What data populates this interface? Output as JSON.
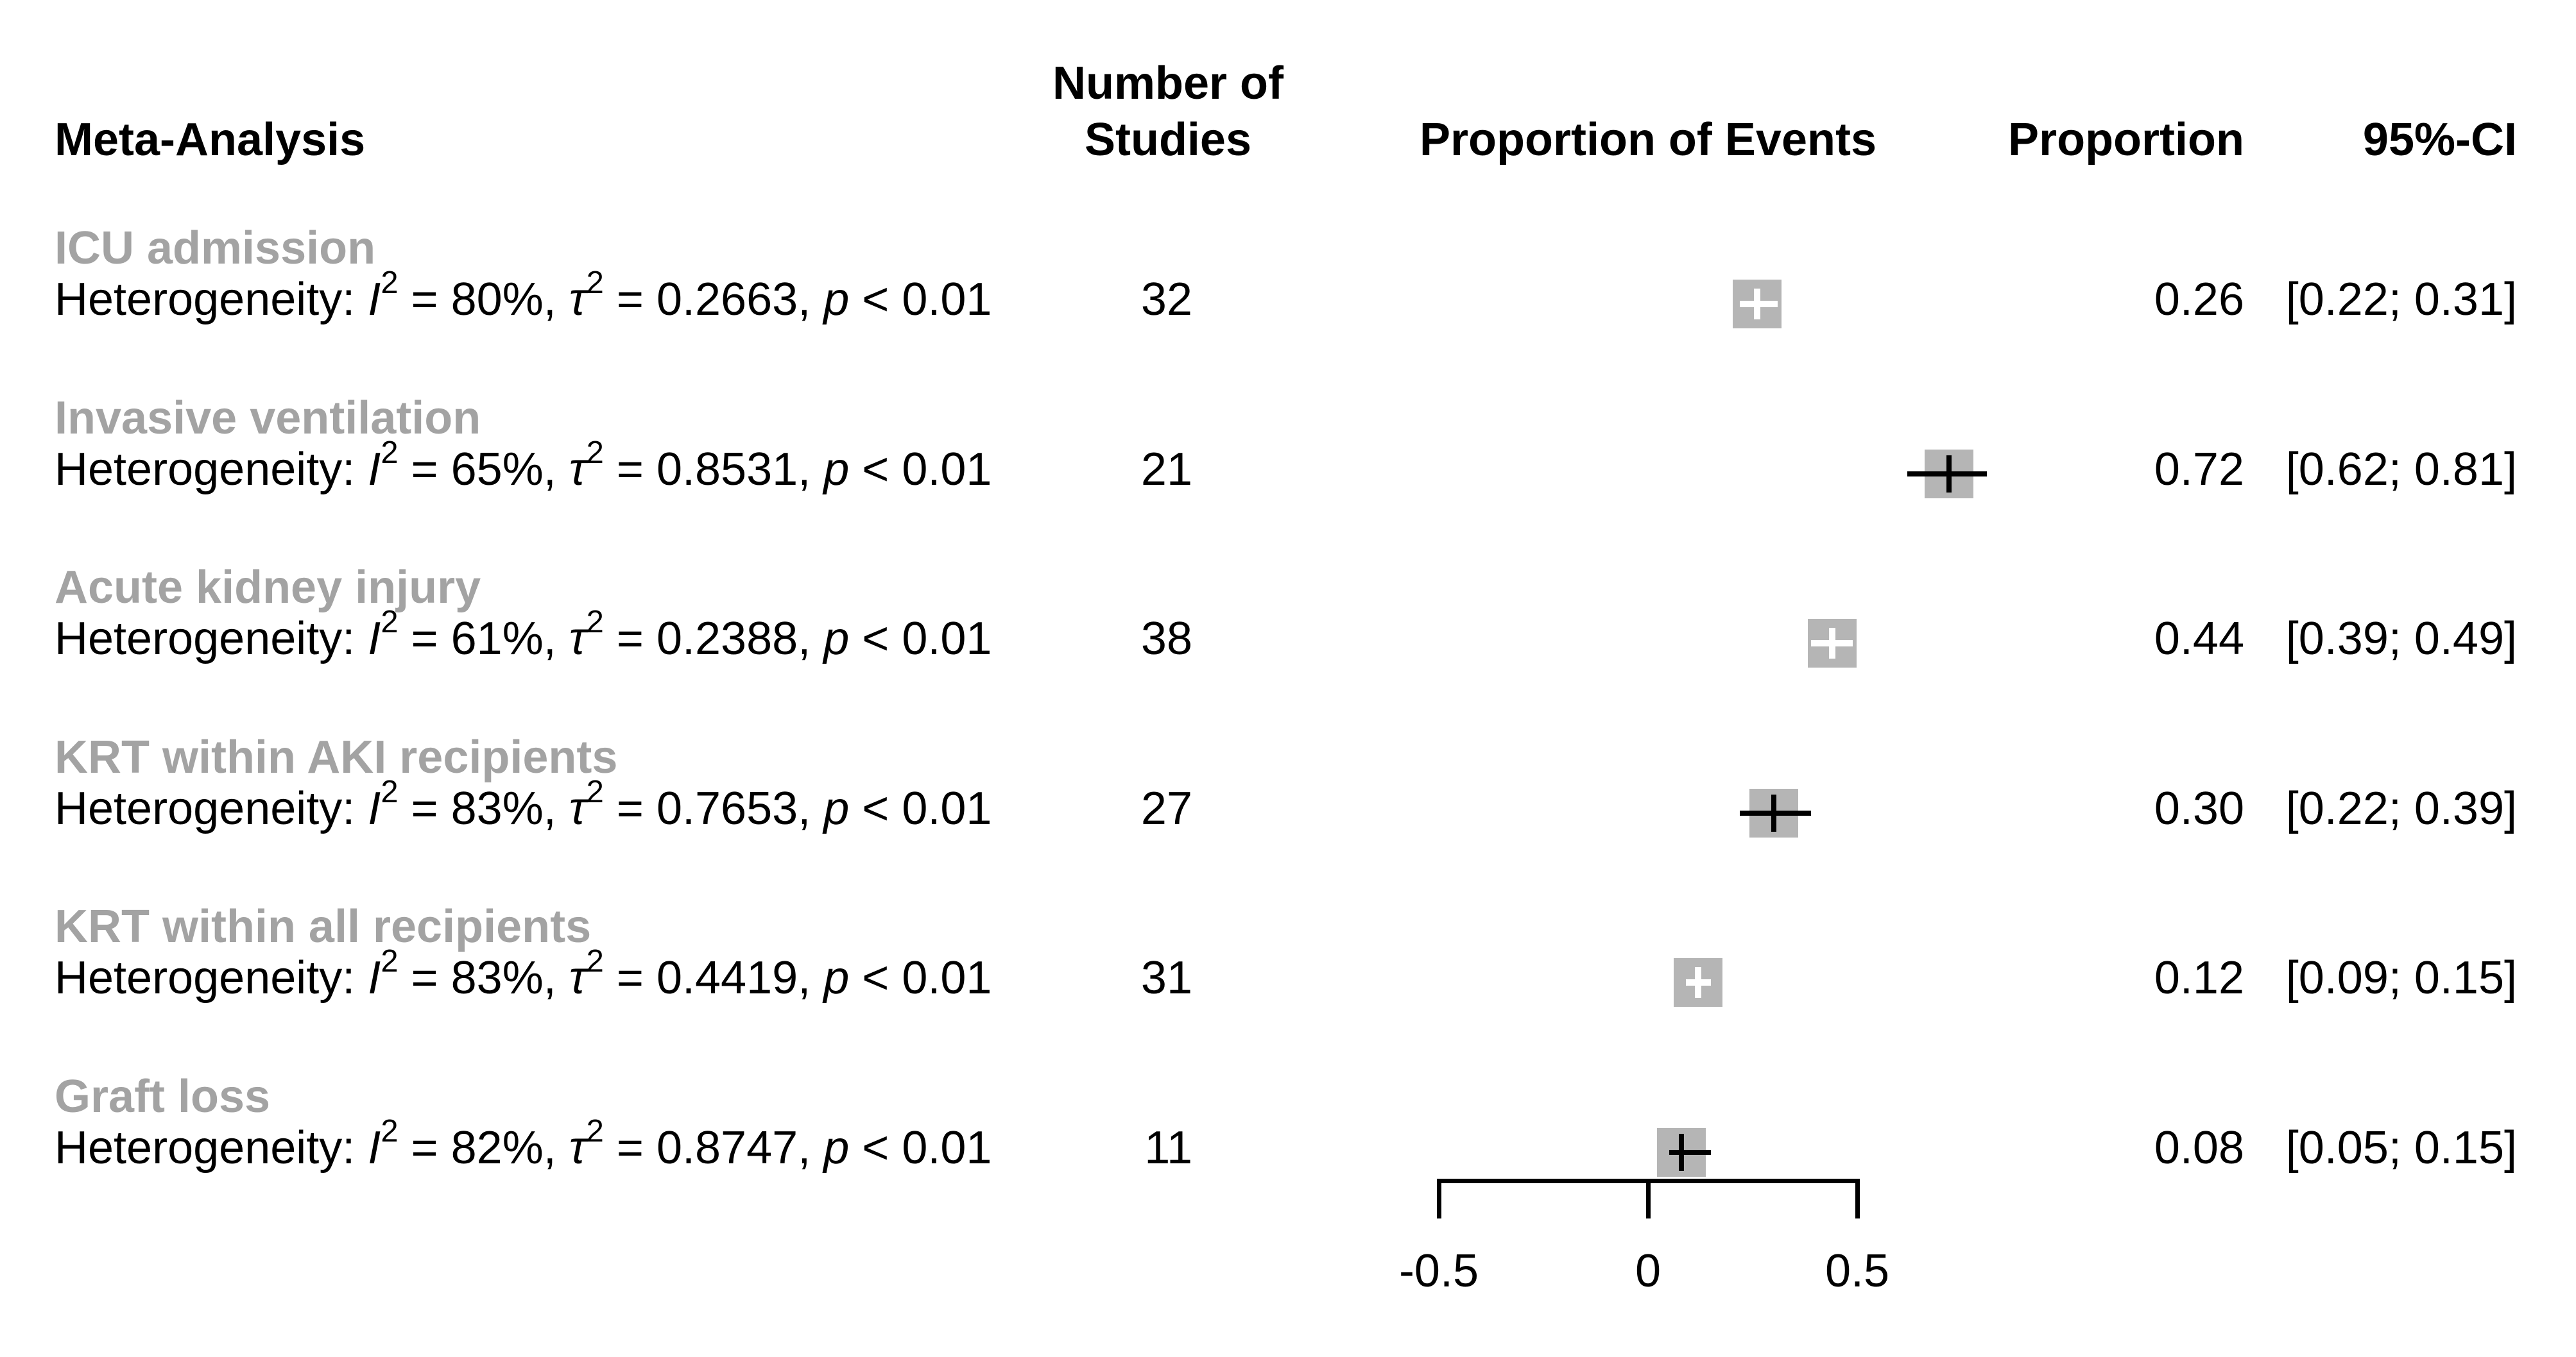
{
  "headers": {
    "meta_analysis": "Meta-Analysis",
    "number_of": "Number of",
    "studies": "Studies",
    "proportion_of_events": "Proportion of Events",
    "proportion": "Proportion",
    "ci": "95%-CI"
  },
  "labels": {
    "heterogeneity": "Heterogeneity:",
    "i_symbol": "I",
    "tau_symbol": "τ",
    "p_symbol": "p",
    "sup2": "2"
  },
  "colors": {
    "background": "#ffffff",
    "text": "#000000",
    "section_label": "#a3a3a3",
    "marker_fill": "#b5b5b5",
    "ci_line_outside": "#000000",
    "ci_line_inside": "#ffffff"
  },
  "chart_data": {
    "type": "forest",
    "title": "",
    "x_axis": {
      "range": [
        -0.5,
        0.5
      ],
      "ticks": [
        {
          "value": -0.5,
          "label": "-0.5"
        },
        {
          "value": 0,
          "label": "0"
        },
        {
          "value": 0.5,
          "label": "0.5"
        }
      ]
    },
    "rows": [
      {
        "label": "ICU admission",
        "i2": "80%",
        "tau2": "0.2663",
        "p": "< 0.01",
        "n_studies": "32",
        "proportion": 0.26,
        "ci_low": 0.22,
        "ci_high": 0.31,
        "proportion_label": "0.26",
        "ci_label": "[0.22; 0.31]",
        "ci_style": "inside-white"
      },
      {
        "label": "Invasive ventilation",
        "i2": "65%",
        "tau2": "0.8531",
        "p": "< 0.01",
        "n_studies": "21",
        "proportion": 0.72,
        "ci_low": 0.62,
        "ci_high": 0.81,
        "proportion_label": "0.72",
        "ci_label": "[0.62; 0.81]",
        "ci_style": "outside-black"
      },
      {
        "label": "Acute kidney injury",
        "i2": "61%",
        "tau2": "0.2388",
        "p": "< 0.01",
        "n_studies": "38",
        "proportion": 0.44,
        "ci_low": 0.39,
        "ci_high": 0.49,
        "proportion_label": "0.44",
        "ci_label": "[0.39; 0.49]",
        "ci_style": "inside-white"
      },
      {
        "label": "KRT within AKI recipients",
        "i2": "83%",
        "tau2": "0.7653",
        "p": "< 0.01",
        "n_studies": "27",
        "proportion": 0.3,
        "ci_low": 0.22,
        "ci_high": 0.39,
        "proportion_label": "0.30",
        "ci_label": "[0.22; 0.39]",
        "ci_style": "outside-black"
      },
      {
        "label": "KRT within all recipients",
        "i2": "83%",
        "tau2": "0.4419",
        "p": "< 0.01",
        "n_studies": "31",
        "proportion": 0.12,
        "ci_low": 0.09,
        "ci_high": 0.15,
        "proportion_label": "0.12",
        "ci_label": "[0.09; 0.15]",
        "ci_style": "inside-white"
      },
      {
        "label": "Graft loss",
        "i2": "82%",
        "tau2": "0.8747",
        "p": "< 0.01",
        "n_studies": "11",
        "proportion": 0.08,
        "ci_low": 0.05,
        "ci_high": 0.15,
        "proportion_label": "0.08",
        "ci_label": "[0.05; 0.15]",
        "ci_style": "outside-black"
      }
    ]
  }
}
